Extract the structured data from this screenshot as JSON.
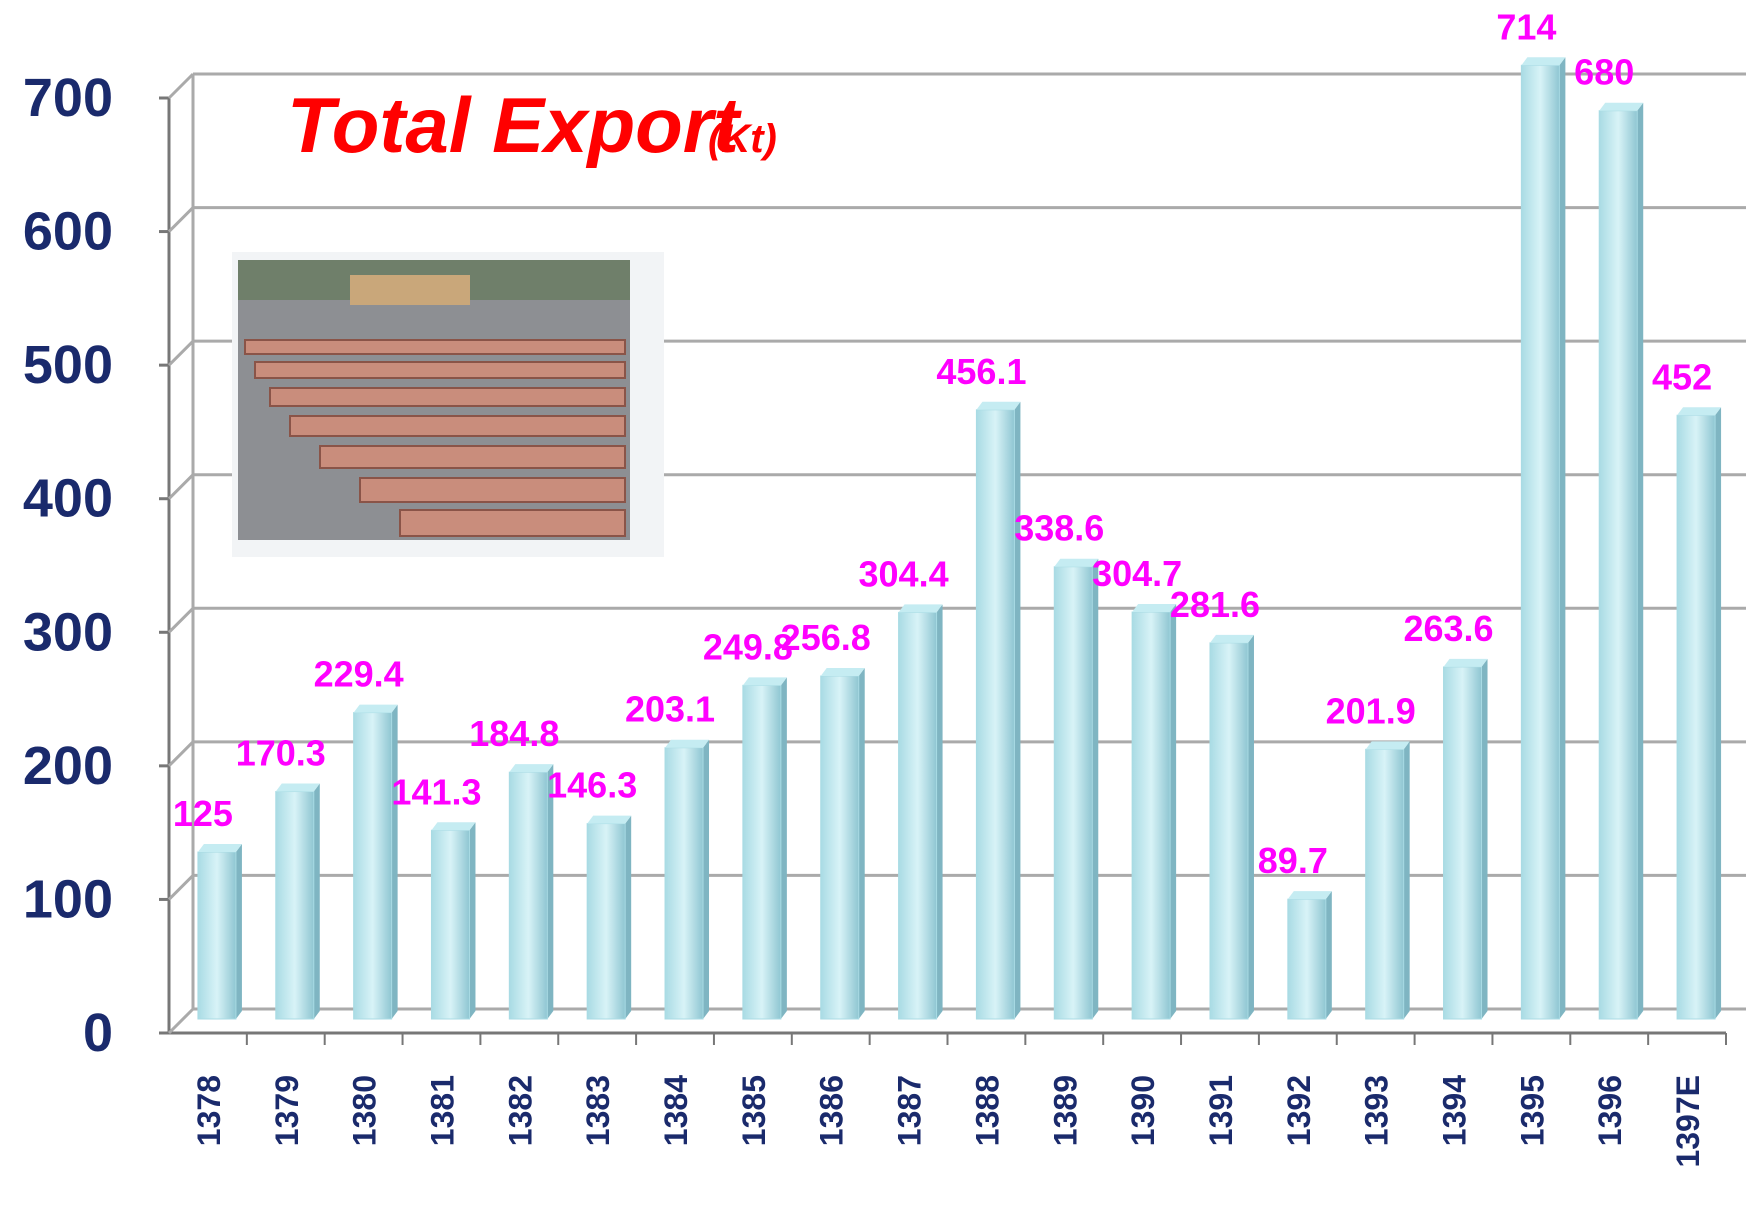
{
  "chart_data": {
    "type": "bar",
    "title": "Total Export",
    "unit": "(Kt)",
    "categories": [
      "1378",
      "1379",
      "1380",
      "1381",
      "1382",
      "1383",
      "1384",
      "1385",
      "1386",
      "1387",
      "1388",
      "1389",
      "1390",
      "1391",
      "1392",
      "1393",
      "1394",
      "1395",
      "1396",
      "1397E"
    ],
    "values": [
      125,
      170.3,
      229.4,
      141.3,
      184.8,
      146.3,
      203.1,
      249.8,
      256.8,
      304.4,
      456.1,
      338.6,
      304.7,
      281.6,
      89.7,
      201.9,
      263.6,
      714,
      680,
      452
    ],
    "color": "#a9dbe4",
    "value_label_color": "#ff00ff",
    "ylim": [
      0,
      700
    ],
    "yticks": [
      0,
      100,
      200,
      300,
      400,
      500,
      600,
      700
    ],
    "grid": true
  }
}
